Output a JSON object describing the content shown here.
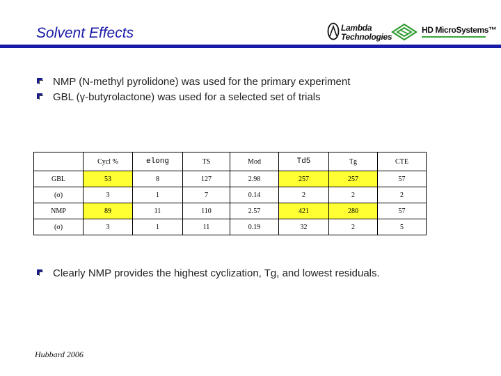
{
  "title": "Solvent Effects",
  "logos": {
    "lambda_line1": "Lambda",
    "lambda_line2": "Technologies",
    "hd": "HD MicroSystems™"
  },
  "bullets": [
    "NMP (N-methyl pyrolidone) was used for the primary experiment",
    "GBL (γ-butyrolactone) was used for a selected set of trials"
  ],
  "table": {
    "headers": [
      "",
      "Cycl %",
      "elong",
      "TS",
      "Mod",
      "Td5",
      "Tg",
      "CTE"
    ],
    "rows": [
      [
        "GBL",
        "53",
        "8",
        "127",
        "2.98",
        "257",
        "257",
        "57"
      ],
      [
        "(σ)",
        "3",
        "1",
        "7",
        "0.14",
        "2",
        "2",
        "2"
      ],
      [
        "NMP",
        "89",
        "11",
        "110",
        "2.57",
        "421",
        "280",
        "57"
      ],
      [
        "(σ)",
        "3",
        "1",
        "11",
        "0.19",
        "32",
        "2",
        "5"
      ]
    ],
    "highlight_color": "#ffff33"
  },
  "conclusion": "Clearly NMP provides the highest cyclization, Tg, and lowest residuals.",
  "footer": "Hubbard 2006",
  "colors": {
    "title": "#1a1aa8",
    "rule": "#1a1aa8",
    "bullet": "#1a1a8c"
  }
}
